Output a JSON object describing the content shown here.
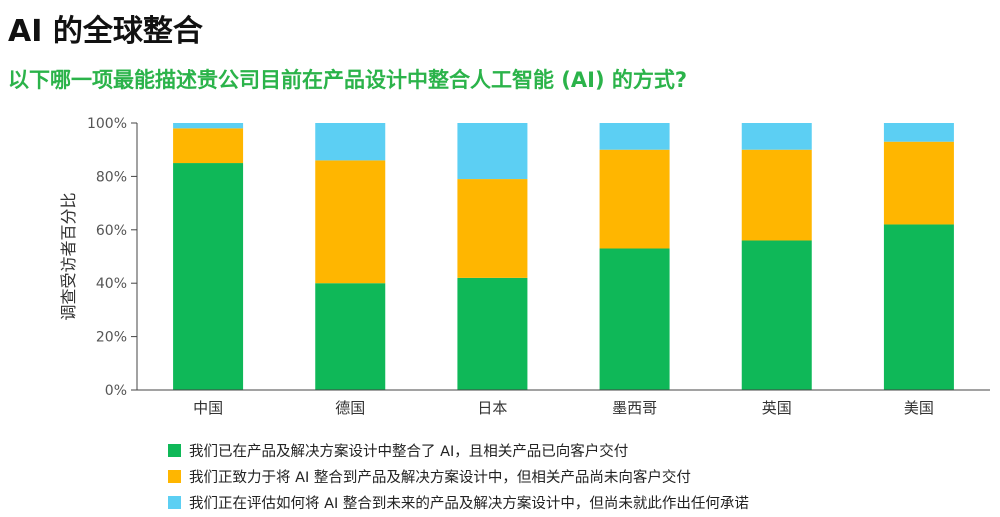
{
  "header": {
    "title": "AI 的全球整合",
    "subtitle": "以下哪一项最能描述贵公司目前在产品设计中整合人工智能 (AI) 的方式?"
  },
  "colors": {
    "accent": "#2bb34a",
    "grid": "#333333"
  },
  "chart_data": {
    "type": "bar",
    "stacked": true,
    "orientation": "vertical",
    "ylabel": "调查受访者百分比",
    "xlabel": "",
    "ylim": [
      0,
      100
    ],
    "yticks": [
      0,
      20,
      40,
      60,
      80,
      100
    ],
    "y_tick_suffix": "%",
    "grid": false,
    "legend_position": "bottom-left",
    "categories": [
      "中国",
      "德国",
      "日本",
      "墨西哥",
      "英国",
      "美国"
    ],
    "series": [
      {
        "name": "我们已在产品及解决方案设计中整合了 AI，且相关产品已向客户交付",
        "color": "#0fb858",
        "values": [
          85,
          40,
          42,
          53,
          56,
          62
        ]
      },
      {
        "name": "我们正致力于将 AI 整合到产品及解决方案设计中，但相关产品尚未向客户交付",
        "color": "#ffb600",
        "values": [
          13,
          46,
          37,
          37,
          34,
          31
        ]
      },
      {
        "name": "我们正在评估如何将 AI 整合到未来的产品及解决方案设计中，但尚未就此作出任何承诺",
        "color": "#5ccff3",
        "values": [
          2,
          14,
          21,
          10,
          10,
          7
        ]
      }
    ]
  }
}
